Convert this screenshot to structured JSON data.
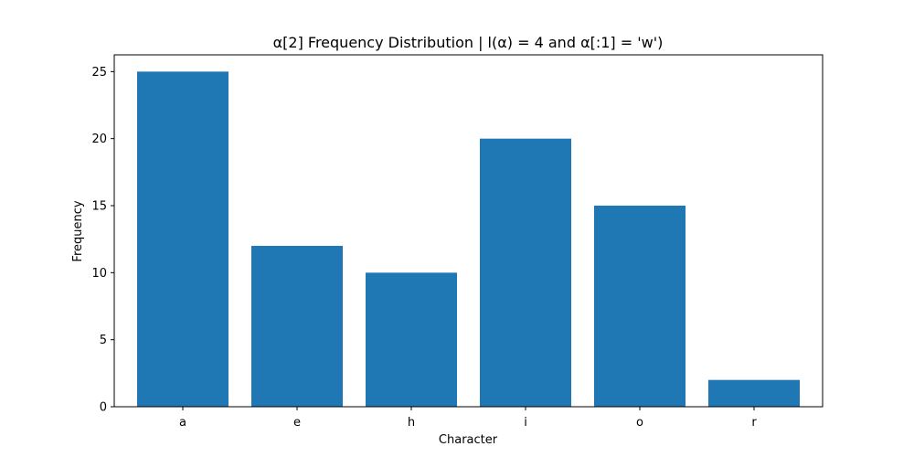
{
  "chart_data": {
    "type": "bar",
    "title": "α[2] Frequency Distribution | l(α) = 4 and  α[:1] = 'w')",
    "xlabel": "Character",
    "ylabel": "Frequency",
    "categories": [
      "a",
      "e",
      "h",
      "i",
      "o",
      "r"
    ],
    "values": [
      25,
      12,
      10,
      20,
      15,
      2
    ],
    "ylim": [
      0,
      26.25
    ],
    "yticks": [
      0,
      5,
      10,
      15,
      20,
      25
    ],
    "grid": false,
    "bar_color": "#1f77b4"
  }
}
